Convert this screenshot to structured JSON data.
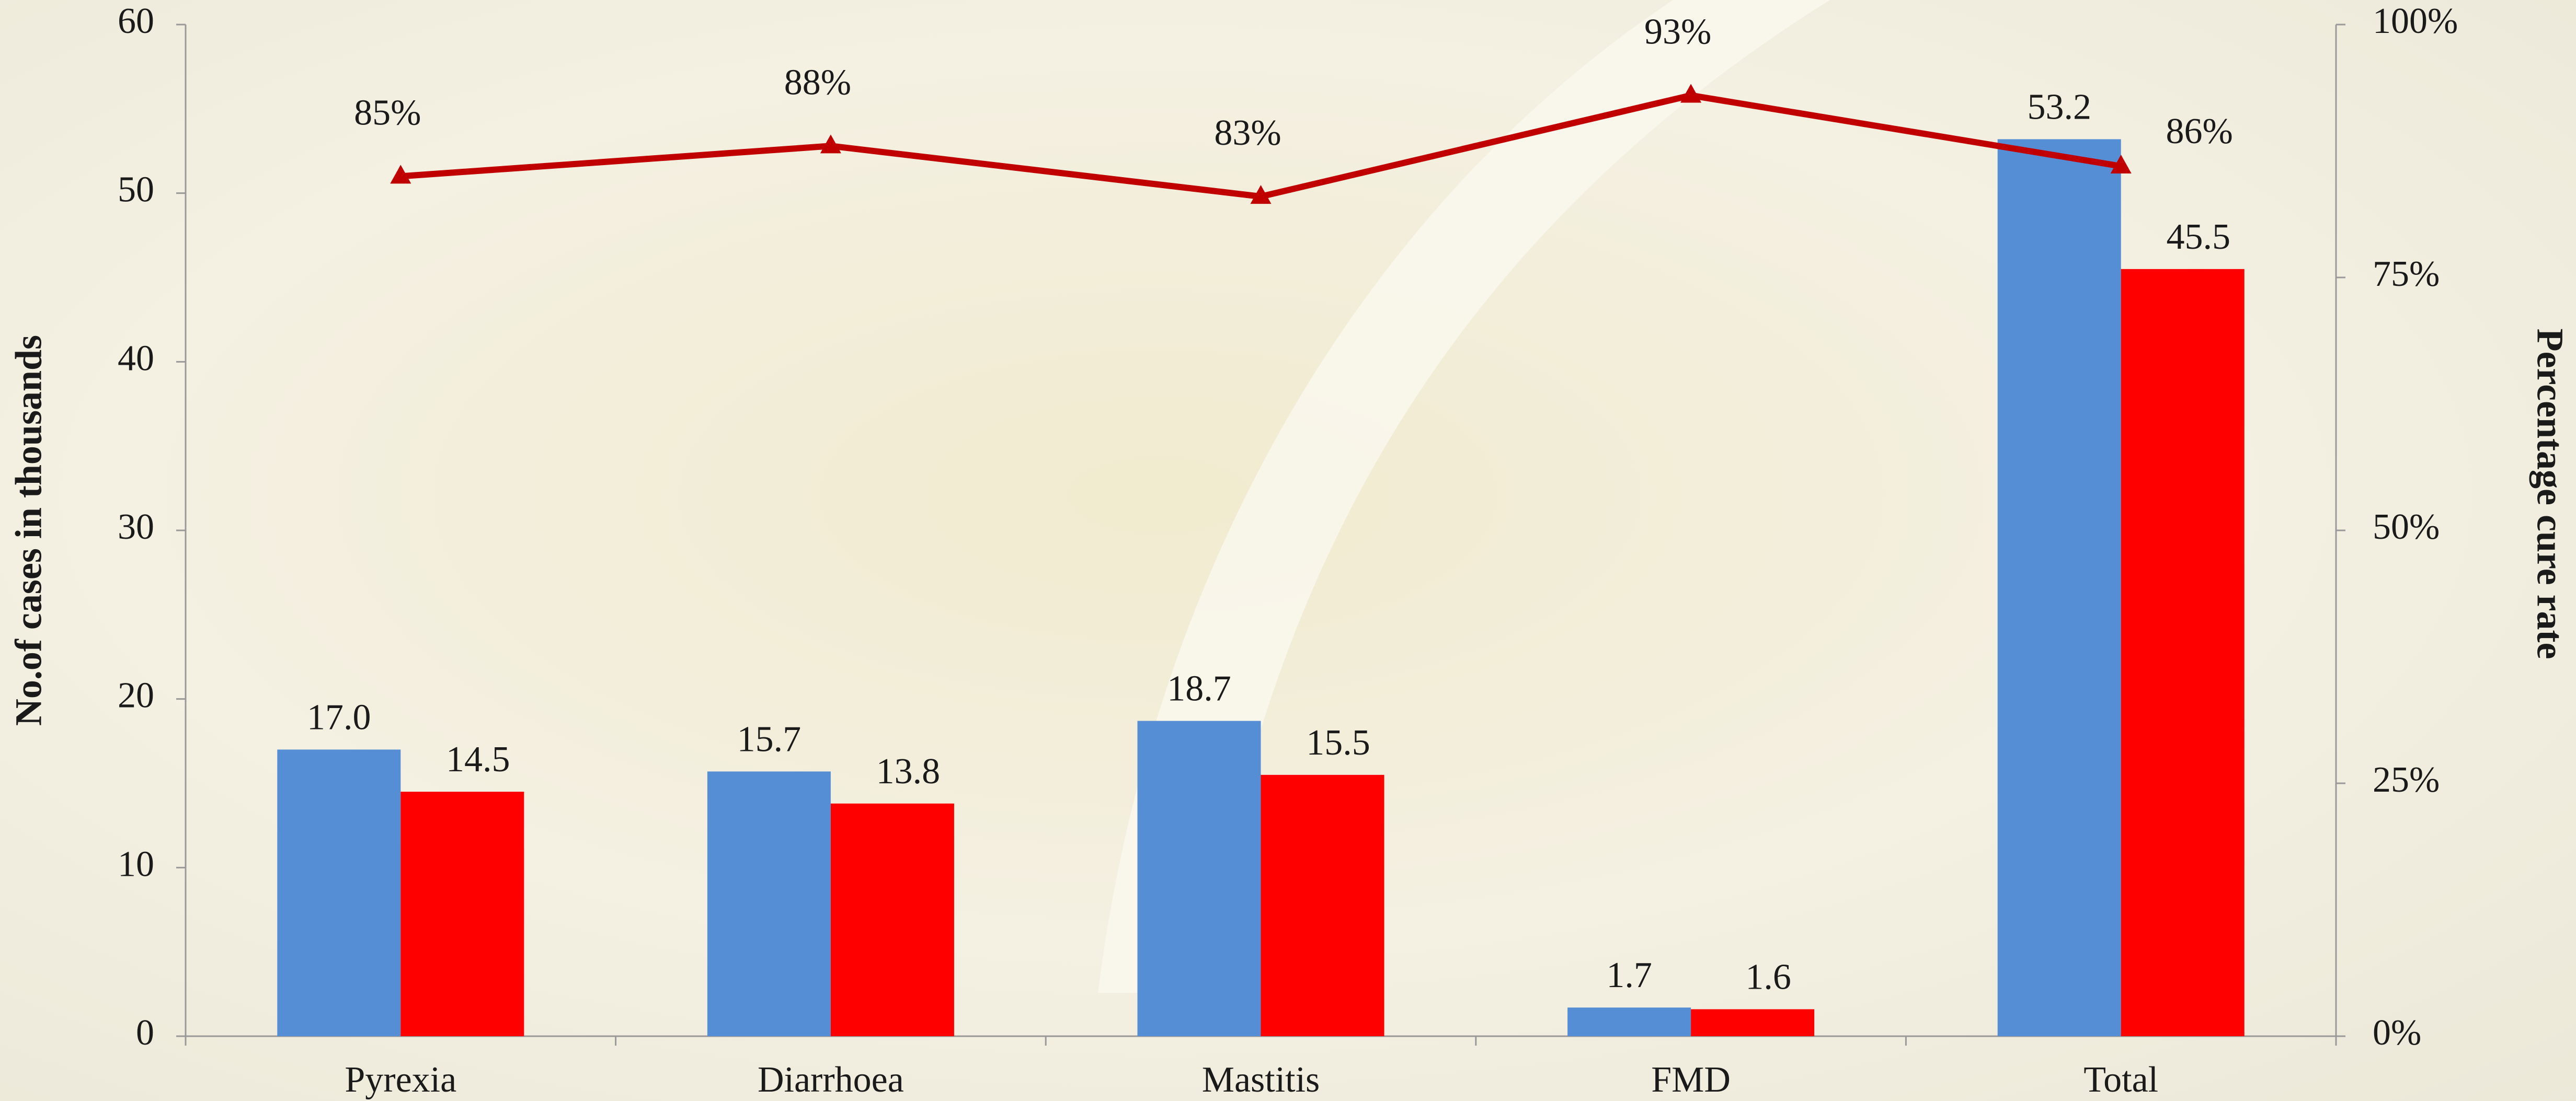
{
  "chart_data": {
    "type": "bar",
    "categories": [
      "Pyrexia",
      "Diarrhoea",
      "Mastitis",
      "FMD",
      "Total"
    ],
    "series": [
      {
        "type": "bar",
        "color": "#558ed5",
        "values": [
          17.0,
          15.7,
          18.7,
          1.7,
          53.2
        ],
        "value_labels": [
          "17.0",
          "15.7",
          "18.7",
          "1.7",
          "53.2"
        ]
      },
      {
        "type": "bar",
        "color": "#ff0000",
        "values": [
          14.5,
          13.8,
          15.5,
          1.6,
          45.5
        ],
        "value_labels": [
          "14.5",
          "13.8",
          "15.5",
          "1.6",
          "45.5"
        ]
      },
      {
        "type": "line",
        "axis": "y2",
        "color": "#c00000",
        "values": [
          85,
          88,
          83,
          93,
          86
        ],
        "value_labels": [
          "85%",
          "88%",
          "83%",
          "93%",
          "86%"
        ]
      }
    ],
    "ylabel": "No.of cases in thousands",
    "y2label": "Percentage cure rate",
    "ylim": [
      0,
      60
    ],
    "yticks": [
      0,
      10,
      20,
      30,
      40,
      50,
      60
    ],
    "y2lim": [
      0,
      100
    ],
    "y2ticks": [
      {
        "value": 0,
        "label": "0%"
      },
      {
        "value": 25,
        "label": "25%"
      },
      {
        "value": 50,
        "label": "50%"
      },
      {
        "value": 75,
        "label": "75%"
      },
      {
        "value": 100,
        "label": "100%"
      }
    ]
  }
}
